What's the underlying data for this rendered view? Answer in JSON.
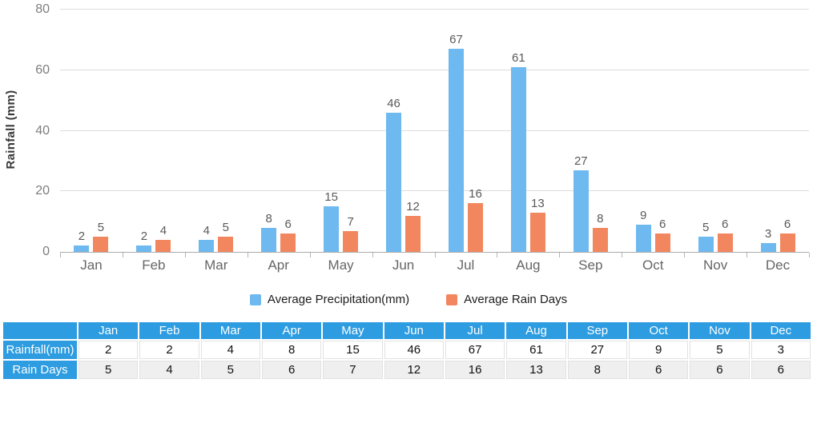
{
  "chart_data": {
    "type": "bar",
    "title": "",
    "xlabel": "",
    "ylabel": "Rainfall (mm)",
    "ylim": [
      0,
      80
    ],
    "yticks": [
      0,
      20,
      40,
      60,
      80
    ],
    "grid": true,
    "legend_position": "bottom",
    "categories": [
      "Jan",
      "Feb",
      "Mar",
      "Apr",
      "May",
      "Jun",
      "Jul",
      "Aug",
      "Sep",
      "Oct",
      "Nov",
      "Dec"
    ],
    "series": [
      {
        "name": "Average Precipitation(mm)",
        "values": [
          2,
          2,
          4,
          8,
          15,
          46,
          67,
          61,
          27,
          9,
          5,
          3
        ],
        "color": "#6eb9ef"
      },
      {
        "name": "Average Rain Days",
        "values": [
          5,
          4,
          5,
          6,
          7,
          12,
          16,
          13,
          8,
          6,
          6,
          6
        ],
        "color": "#f2875f"
      }
    ]
  },
  "table": {
    "corner_label": "",
    "columns": [
      "Jan",
      "Feb",
      "Mar",
      "Apr",
      "May",
      "Jun",
      "Jul",
      "Aug",
      "Sep",
      "Oct",
      "Nov",
      "Dec"
    ],
    "rows": [
      {
        "label": "Rainfall(mm)",
        "values": [
          2,
          2,
          4,
          8,
          15,
          46,
          67,
          61,
          27,
          9,
          5,
          3
        ]
      },
      {
        "label": "Rain Days",
        "values": [
          5,
          4,
          5,
          6,
          7,
          12,
          16,
          13,
          8,
          6,
          6,
          6
        ]
      }
    ]
  },
  "colors": {
    "precipitation_bar": "#6eb9ef",
    "rain_days_bar": "#f2875f",
    "table_header_bg": "#2d9ce0",
    "table_row_white_bg": "#ffffff",
    "table_row_gray_bg": "#efefef",
    "gridline": "#dcdcdc",
    "axis_line": "#ababab"
  }
}
